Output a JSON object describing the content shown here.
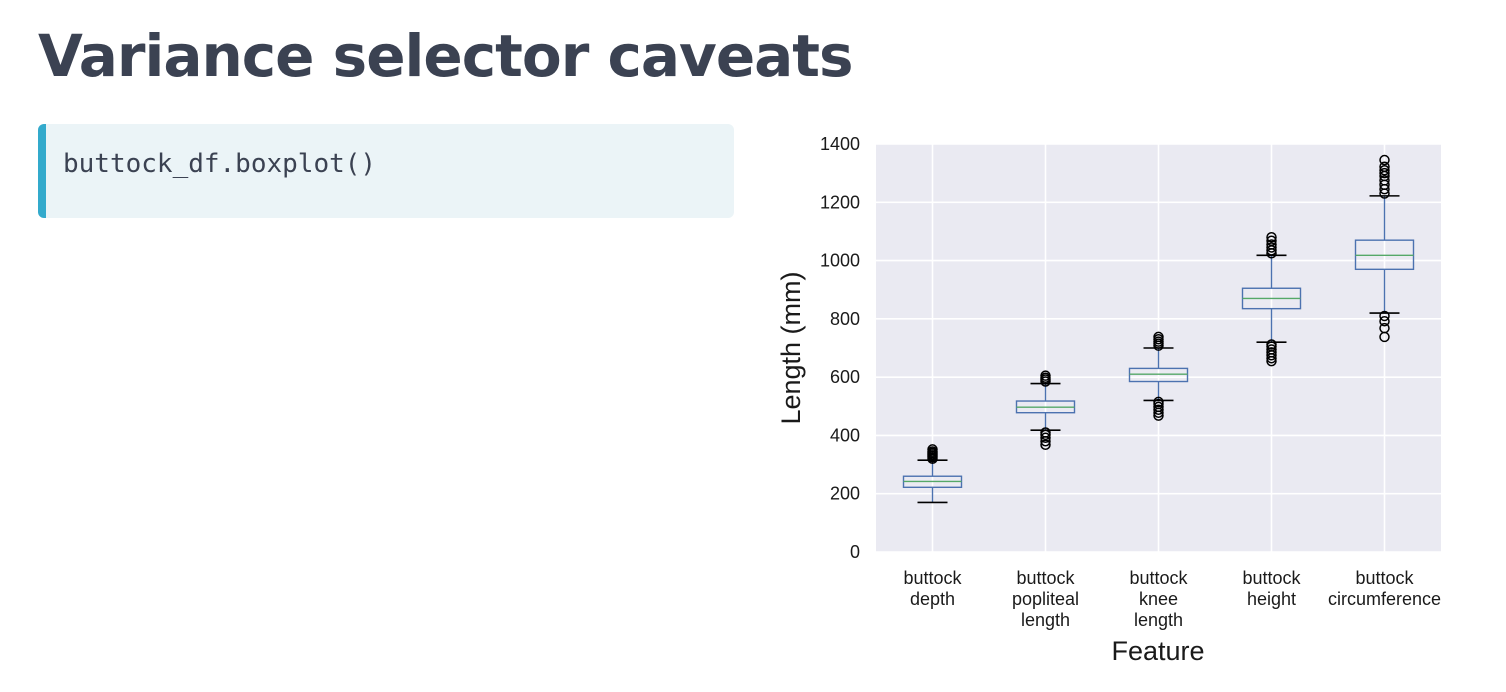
{
  "slide": {
    "title": "Variance selector caveats",
    "code": "buttock_df.boxplot()"
  },
  "chart_data": {
    "type": "box",
    "xlabel": "Feature",
    "ylabel": "Length (mm)",
    "ylim": [
      0,
      1400
    ],
    "yticks": [
      0,
      200,
      400,
      600,
      800,
      1000,
      1200,
      1400
    ],
    "grid": true,
    "colors": {
      "background": "#eaeaf2",
      "grid": "#ffffff",
      "box": "#4c72b0",
      "median": "#55a868",
      "whisker_cap": "#000000",
      "flier": "#000000"
    },
    "categories": [
      {
        "label": [
          "buttock",
          "depth"
        ],
        "whisker_low": 170,
        "q1": 222,
        "median": 242,
        "q3": 260,
        "whisker_high": 315,
        "fliers": [
          320,
          325,
          330,
          335,
          340,
          345,
          352
        ]
      },
      {
        "label": [
          "buttock",
          "popliteal",
          "length"
        ],
        "whisker_low": 418,
        "q1": 478,
        "median": 497,
        "q3": 518,
        "whisker_high": 578,
        "fliers": [
          368,
          380,
          392,
          402,
          410,
          585,
          592,
          598,
          605
        ]
      },
      {
        "label": [
          "buttock",
          "knee",
          "length"
        ],
        "whisker_low": 520,
        "q1": 585,
        "median": 610,
        "q3": 630,
        "whisker_high": 700,
        "fliers": [
          468,
          478,
          488,
          498,
          508,
          515,
          708,
          715,
          722,
          730,
          738
        ]
      },
      {
        "label": [
          "buttock",
          "height"
        ],
        "whisker_low": 720,
        "q1": 835,
        "median": 870,
        "q3": 905,
        "whisker_high": 1018,
        "fliers": [
          655,
          665,
          675,
          685,
          695,
          705,
          712,
          1025,
          1035,
          1045,
          1055,
          1068,
          1080
        ]
      },
      {
        "label": [
          "buttock",
          "circumference"
        ],
        "whisker_low": 820,
        "q1": 970,
        "median": 1018,
        "q3": 1070,
        "whisker_high": 1222,
        "fliers": [
          738,
          768,
          792,
          810,
          1230,
          1245,
          1260,
          1275,
          1290,
          1300,
          1310,
          1322,
          1345
        ]
      }
    ]
  }
}
